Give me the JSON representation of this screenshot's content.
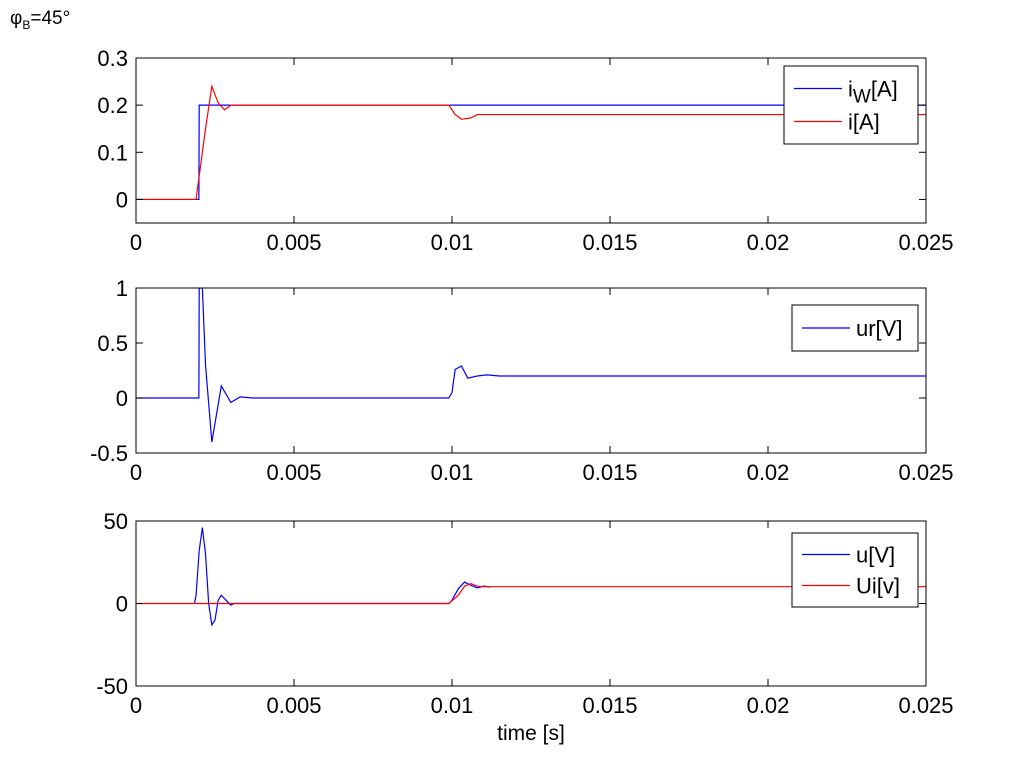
{
  "figure_label": {
    "symbol": "φ",
    "subscript": "B",
    "value": "=45°"
  },
  "colors": {
    "blue": "#0000ff",
    "red": "#ff0000",
    "axes": "#000000"
  },
  "chart_data": [
    {
      "type": "line",
      "xlim": [
        0,
        0.025
      ],
      "ylim": [
        -0.05,
        0.3
      ],
      "xticks": [
        0,
        0.005,
        0.01,
        0.015,
        0.02,
        0.025
      ],
      "xtick_labels": [
        "0",
        "0.005",
        "0.01",
        "0.015",
        "0.02",
        "0.025"
      ],
      "yticks": [
        0,
        0.1,
        0.2,
        0.3
      ],
      "ytick_labels": [
        "0",
        "0.1",
        "0.2",
        "0.3"
      ],
      "xlabel": "",
      "grid": false,
      "legend_position": "top-right",
      "series": [
        {
          "name": "i",
          "name_sub": "W",
          "name_suffix": "[A]",
          "color": "#0000ff",
          "x": [
            0,
            0.00199,
            0.002,
            0.025
          ],
          "y": [
            0,
            0,
            0.2,
            0.2
          ]
        },
        {
          "name": "i[A]",
          "name_sub": "",
          "name_suffix": "",
          "color": "#ff0000",
          "x": [
            0,
            0.0019,
            0.0022,
            0.0024,
            0.0026,
            0.0028,
            0.003,
            0.0032,
            0.004,
            0.0099,
            0.0101,
            0.0103,
            0.0106,
            0.0108,
            0.0112,
            0.025
          ],
          "y": [
            0,
            0,
            0.15,
            0.24,
            0.205,
            0.19,
            0.2,
            0.2,
            0.2,
            0.2,
            0.18,
            0.17,
            0.173,
            0.18,
            0.18,
            0.18
          ]
        }
      ]
    },
    {
      "type": "line",
      "xlim": [
        0,
        0.025
      ],
      "ylim": [
        -0.5,
        1
      ],
      "xticks": [
        0,
        0.005,
        0.01,
        0.015,
        0.02,
        0.025
      ],
      "xtick_labels": [
        "0",
        "0.005",
        "0.01",
        "0.015",
        "0.02",
        "0.025"
      ],
      "yticks": [
        -0.5,
        0,
        0.5,
        1
      ],
      "ytick_labels": [
        "-0.5",
        "0",
        "0.5",
        "1"
      ],
      "xlabel": "",
      "grid": false,
      "legend_position": "top-right",
      "series": [
        {
          "name": "ur[V]",
          "name_sub": "",
          "name_suffix": "",
          "color": "#0000ff",
          "x": [
            0,
            0.00199,
            0.002,
            0.0021,
            0.0022,
            0.0024,
            0.0027,
            0.003,
            0.0033,
            0.0037,
            0.0099,
            0.01,
            0.0101,
            0.0103,
            0.0105,
            0.0108,
            0.0111,
            0.0115,
            0.012,
            0.025
          ],
          "y": [
            0,
            0,
            1,
            1,
            0.3,
            -0.4,
            0.11,
            -0.04,
            0.01,
            0,
            0,
            0.05,
            0.26,
            0.29,
            0.18,
            0.2,
            0.21,
            0.2,
            0.2,
            0.2
          ]
        }
      ]
    },
    {
      "type": "line",
      "xlim": [
        0,
        0.025
      ],
      "ylim": [
        -50,
        50
      ],
      "xticks": [
        0,
        0.005,
        0.01,
        0.015,
        0.02,
        0.025
      ],
      "xtick_labels": [
        "0",
        "0.005",
        "0.01",
        "0.015",
        "0.02",
        "0.025"
      ],
      "yticks": [
        -50,
        0,
        50
      ],
      "ytick_labels": [
        "-50",
        "0",
        "50"
      ],
      "xlabel": "time [s]",
      "grid": false,
      "legend_position": "top-right",
      "series": [
        {
          "name": "u[V]",
          "name_sub": "",
          "name_suffix": "",
          "color": "#0000ff",
          "x": [
            0.00185,
            0.0019,
            0.002,
            0.0021,
            0.0022,
            0.0023,
            0.0024,
            0.0025,
            0.0026,
            0.0027,
            0.0028,
            0.003,
            0.0031,
            0.0032,
            0.0035,
            0.0099,
            0.01,
            0.0102,
            0.0104,
            0.0106,
            0.0108,
            0.011,
            0.0112
          ],
          "y": [
            0,
            5,
            32,
            46,
            30,
            0,
            -13,
            -10,
            2,
            5,
            3,
            -1,
            0,
            0,
            0,
            0,
            2,
            9,
            13,
            11,
            9.5,
            10.5,
            10
          ]
        },
        {
          "name": "Ui[v]",
          "name_sub": "",
          "name_suffix": "",
          "color": "#ff0000",
          "x": [
            0,
            0.0099,
            0.0102,
            0.0104,
            0.0106,
            0.0108,
            0.011,
            0.025
          ],
          "y": [
            0,
            0,
            5,
            10.5,
            12,
            10.5,
            10.2,
            10.2
          ]
        }
      ]
    }
  ]
}
